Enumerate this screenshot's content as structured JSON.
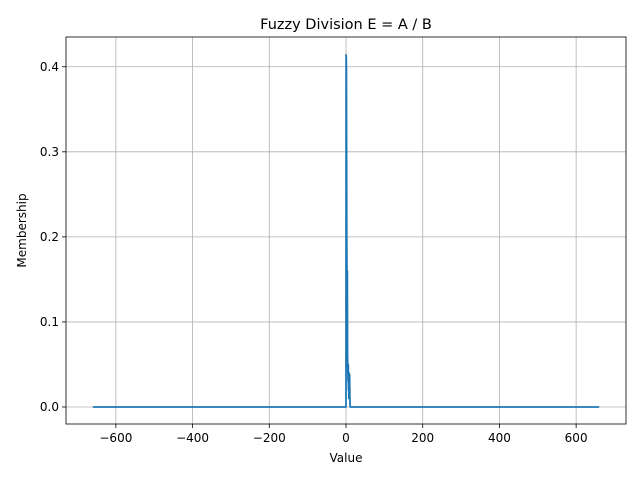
{
  "chart_data": {
    "type": "line",
    "title": "Fuzzy Division E = A / B",
    "xlabel": "Value",
    "ylabel": "Membership",
    "xlim": [
      -730,
      730
    ],
    "ylim": [
      -0.02,
      0.435
    ],
    "x_ticks": [
      -600,
      -400,
      -200,
      0,
      200,
      400,
      600
    ],
    "x_tick_labels": [
      "−600",
      "−400",
      "−200",
      "0",
      "200",
      "400",
      "600"
    ],
    "y_ticks": [
      0.0,
      0.1,
      0.2,
      0.3,
      0.4
    ],
    "y_tick_labels": [
      "0.0",
      "0.1",
      "0.2",
      "0.3",
      "0.4"
    ],
    "grid": true,
    "series": [
      {
        "color": "#1f77b4",
        "x": [
          -660,
          -1,
          0,
          0.3,
          0.6,
          1.0,
          1.3,
          1.6,
          2.0,
          2.5,
          3.0,
          3.5,
          4.0,
          4.5,
          5.0,
          5.5,
          6.0,
          6.5,
          7.0,
          7.5,
          8.0,
          8.5,
          9.0,
          9.5,
          10.0,
          11.0,
          660
        ],
        "y": [
          0,
          0,
          0,
          0.414,
          0.41,
          0.4,
          0.35,
          0.28,
          0.2,
          0.15,
          0.1,
          0.16,
          0.06,
          0.05,
          0.04,
          0.03,
          0.05,
          0.02,
          0.03,
          0.01,
          0.04,
          0.02,
          0.01,
          0.038,
          0.01,
          0,
          0
        ]
      }
    ]
  }
}
